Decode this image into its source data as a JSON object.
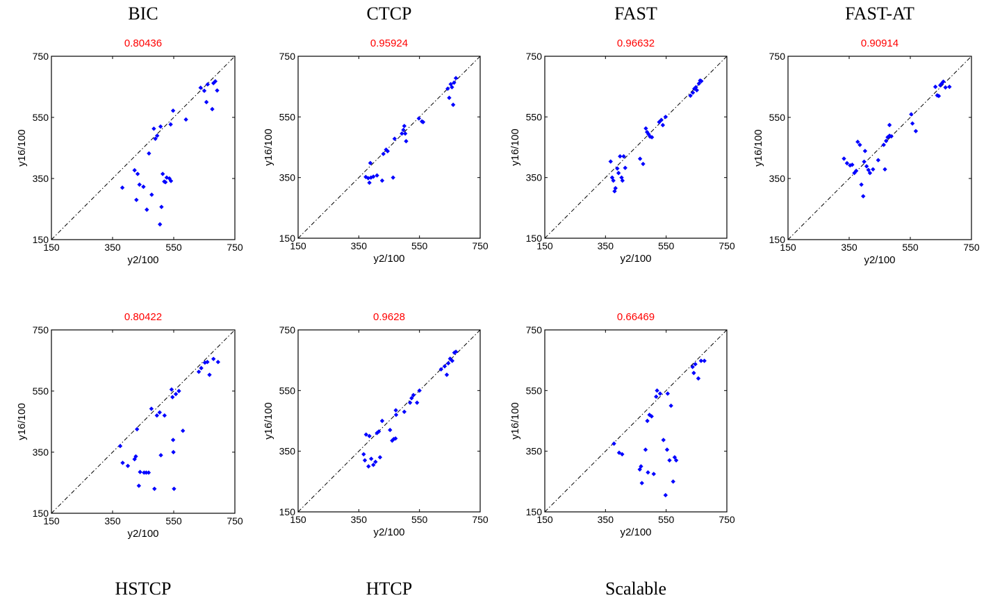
{
  "chart_data": [
    {
      "type": "scatter",
      "title": "BIC",
      "subtitle": "0.80436",
      "xlabel": "y2/100",
      "ylabel": "y16/100",
      "xlim": [
        150,
        750
      ],
      "ylim": [
        150,
        750
      ],
      "xticks": [
        "150",
        "350",
        "550",
        "750"
      ],
      "yticks": [
        "150",
        "350",
        "550",
        "750"
      ],
      "reference_line": "y = x",
      "color": "#0000ff",
      "points": [
        [
          382,
          320
        ],
        [
          422,
          377
        ],
        [
          432,
          365
        ],
        [
          438,
          330
        ],
        [
          428,
          280
        ],
        [
          451,
          323
        ],
        [
          462,
          248
        ],
        [
          469,
          432
        ],
        [
          478,
          297
        ],
        [
          485,
          513
        ],
        [
          490,
          480
        ],
        [
          496,
          490
        ],
        [
          505,
          200
        ],
        [
          510,
          257
        ],
        [
          507,
          520
        ],
        [
          514,
          365
        ],
        [
          519,
          340
        ],
        [
          523,
          338
        ],
        [
          527,
          353
        ],
        [
          536,
          350
        ],
        [
          540,
          527
        ],
        [
          541,
          342
        ],
        [
          548,
          572
        ],
        [
          590,
          543
        ],
        [
          638,
          647
        ],
        [
          650,
          637
        ],
        [
          657,
          600
        ],
        [
          661,
          658
        ],
        [
          676,
          577
        ],
        [
          680,
          662
        ],
        [
          686,
          668
        ],
        [
          692,
          638
        ]
      ]
    },
    {
      "type": "scatter",
      "title": "CTCP",
      "subtitle": "0.95924",
      "xlabel": "y2/100",
      "ylabel": "y16/100",
      "xlim": [
        150,
        750
      ],
      "ylim": [
        150,
        750
      ],
      "xticks": [
        "150",
        "350",
        "550",
        "750"
      ],
      "yticks": [
        "150",
        "350",
        "550",
        "750"
      ],
      "reference_line": "y = x",
      "color": "#0000ff",
      "points": [
        [
          373,
          352
        ],
        [
          381,
          348
        ],
        [
          385,
          333
        ],
        [
          388,
          398
        ],
        [
          390,
          350
        ],
        [
          398,
          353
        ],
        [
          410,
          357
        ],
        [
          427,
          340
        ],
        [
          431,
          428
        ],
        [
          440,
          442
        ],
        [
          445,
          437
        ],
        [
          463,
          350
        ],
        [
          468,
          478
        ],
        [
          492,
          495
        ],
        [
          497,
          507
        ],
        [
          500,
          520
        ],
        [
          503,
          495
        ],
        [
          506,
          470
        ],
        [
          548,
          545
        ],
        [
          558,
          535
        ],
        [
          562,
          533
        ],
        [
          643,
          643
        ],
        [
          648,
          613
        ],
        [
          653,
          658
        ],
        [
          657,
          648
        ],
        [
          661,
          590
        ],
        [
          664,
          663
        ],
        [
          670,
          678
        ]
      ]
    },
    {
      "type": "scatter",
      "title": "FAST",
      "subtitle": "0.96632",
      "xlabel": "y2/100",
      "ylabel": "y16/100",
      "xlim": [
        150,
        750
      ],
      "ylim": [
        150,
        750
      ],
      "xticks": [
        "150",
        "350",
        "550",
        "750"
      ],
      "yticks": [
        "150",
        "350",
        "550",
        "750"
      ],
      "reference_line": "y = x",
      "color": "#0000ff",
      "points": [
        [
          367,
          403
        ],
        [
          372,
          350
        ],
        [
          376,
          340
        ],
        [
          380,
          305
        ],
        [
          383,
          315
        ],
        [
          389,
          380
        ],
        [
          393,
          365
        ],
        [
          398,
          420
        ],
        [
          403,
          350
        ],
        [
          406,
          340
        ],
        [
          410,
          420
        ],
        [
          415,
          382
        ],
        [
          464,
          412
        ],
        [
          474,
          395
        ],
        [
          483,
          512
        ],
        [
          487,
          500
        ],
        [
          492,
          493
        ],
        [
          497,
          485
        ],
        [
          503,
          483
        ],
        [
          527,
          533
        ],
        [
          534,
          540
        ],
        [
          539,
          523
        ],
        [
          548,
          550
        ],
        [
          630,
          620
        ],
        [
          638,
          630
        ],
        [
          643,
          643
        ],
        [
          648,
          648
        ],
        [
          651,
          638
        ],
        [
          658,
          660
        ],
        [
          662,
          670
        ],
        [
          666,
          668
        ]
      ]
    },
    {
      "type": "scatter",
      "title": "FAST-AT",
      "subtitle": "0.90914",
      "xlabel": "y2/100",
      "ylabel": "y16/100",
      "xlim": [
        150,
        750
      ],
      "ylim": [
        150,
        750
      ],
      "xticks": [
        "150",
        "350",
        "550",
        "750"
      ],
      "yticks": [
        "150",
        "350",
        "550",
        "750"
      ],
      "reference_line": "y = x",
      "color": "#0000ff",
      "points": [
        [
          333,
          415
        ],
        [
          343,
          400
        ],
        [
          353,
          393
        ],
        [
          360,
          395
        ],
        [
          367,
          368
        ],
        [
          373,
          375
        ],
        [
          378,
          470
        ],
        [
          385,
          460
        ],
        [
          390,
          330
        ],
        [
          396,
          292
        ],
        [
          399,
          405
        ],
        [
          402,
          440
        ],
        [
          407,
          390
        ],
        [
          413,
          378
        ],
        [
          418,
          368
        ],
        [
          428,
          380
        ],
        [
          445,
          410
        ],
        [
          463,
          460
        ],
        [
          467,
          380
        ],
        [
          471,
          473
        ],
        [
          476,
          485
        ],
        [
          482,
          490
        ],
        [
          488,
          488
        ],
        [
          482,
          525
        ],
        [
          553,
          560
        ],
        [
          557,
          530
        ],
        [
          568,
          505
        ],
        [
          632,
          650
        ],
        [
          638,
          622
        ],
        [
          643,
          620
        ],
        [
          648,
          655
        ],
        [
          652,
          660
        ],
        [
          658,
          667
        ],
        [
          665,
          648
        ],
        [
          678,
          650
        ]
      ]
    },
    {
      "type": "scatter",
      "title": "HSTCP",
      "subtitle": "0.80422",
      "xlabel": "y2/100",
      "ylabel": "y16/100",
      "xlim": [
        150,
        750
      ],
      "ylim": [
        150,
        750
      ],
      "xticks": [
        "150",
        "350",
        "550",
        "750"
      ],
      "yticks": [
        "150",
        "350",
        "550",
        "750"
      ],
      "reference_line": "y = x",
      "color": "#0000ff",
      "points": [
        [
          375,
          370
        ],
        [
          383,
          315
        ],
        [
          400,
          305
        ],
        [
          422,
          327
        ],
        [
          426,
          336
        ],
        [
          430,
          425
        ],
        [
          436,
          240
        ],
        [
          440,
          285
        ],
        [
          453,
          283
        ],
        [
          460,
          283
        ],
        [
          468,
          283
        ],
        [
          477,
          492
        ],
        [
          487,
          230
        ],
        [
          495,
          470
        ],
        [
          504,
          480
        ],
        [
          508,
          340
        ],
        [
          520,
          470
        ],
        [
          543,
          555
        ],
        [
          546,
          530
        ],
        [
          548,
          390
        ],
        [
          549,
          350
        ],
        [
          551,
          230
        ],
        [
          557,
          540
        ],
        [
          567,
          550
        ],
        [
          580,
          420
        ],
        [
          632,
          613
        ],
        [
          640,
          625
        ],
        [
          652,
          643
        ],
        [
          660,
          645
        ],
        [
          667,
          603
        ],
        [
          680,
          655
        ],
        [
          695,
          645
        ]
      ]
    },
    {
      "type": "scatter",
      "title": "HTCP",
      "subtitle": "0.9628",
      "xlabel": "y2/100",
      "ylabel": "y16/100",
      "xlim": [
        150,
        750
      ],
      "ylim": [
        150,
        750
      ],
      "xticks": [
        "150",
        "350",
        "550",
        "750"
      ],
      "yticks": [
        "150",
        "350",
        "550",
        "750"
      ],
      "reference_line": "y = x",
      "color": "#0000ff",
      "points": [
        [
          366,
          340
        ],
        [
          370,
          320
        ],
        [
          374,
          405
        ],
        [
          382,
          300
        ],
        [
          385,
          400
        ],
        [
          391,
          325
        ],
        [
          398,
          305
        ],
        [
          405,
          315
        ],
        [
          410,
          410
        ],
        [
          416,
          415
        ],
        [
          420,
          330
        ],
        [
          427,
          450
        ],
        [
          453,
          420
        ],
        [
          460,
          385
        ],
        [
          465,
          390
        ],
        [
          471,
          392
        ],
        [
          472,
          485
        ],
        [
          473,
          470
        ],
        [
          500,
          480
        ],
        [
          519,
          510
        ],
        [
          524,
          525
        ],
        [
          530,
          535
        ],
        [
          542,
          510
        ],
        [
          550,
          550
        ],
        [
          621,
          620
        ],
        [
          633,
          630
        ],
        [
          640,
          602
        ],
        [
          645,
          640
        ],
        [
          651,
          655
        ],
        [
          658,
          648
        ],
        [
          665,
          675
        ],
        [
          670,
          678
        ]
      ]
    },
    {
      "type": "scatter",
      "title": "Scalable",
      "subtitle": "0.66469",
      "xlabel": "y2/100",
      "ylabel": "y16/100",
      "xlim": [
        150,
        750
      ],
      "ylim": [
        150,
        750
      ],
      "xticks": [
        "150",
        "350",
        "550",
        "750"
      ],
      "yticks": [
        "150",
        "350",
        "550",
        "750"
      ],
      "reference_line": "y = x",
      "color": "#0000ff",
      "points": [
        [
          378,
          375
        ],
        [
          395,
          345
        ],
        [
          405,
          340
        ],
        [
          463,
          290
        ],
        [
          467,
          300
        ],
        [
          470,
          245
        ],
        [
          482,
          355
        ],
        [
          488,
          450
        ],
        [
          490,
          280
        ],
        [
          495,
          470
        ],
        [
          502,
          465
        ],
        [
          509,
          275
        ],
        [
          517,
          530
        ],
        [
          520,
          550
        ],
        [
          530,
          540
        ],
        [
          541,
          387
        ],
        [
          548,
          205
        ],
        [
          553,
          355
        ],
        [
          555,
          540
        ],
        [
          561,
          320
        ],
        [
          566,
          500
        ],
        [
          573,
          250
        ],
        [
          578,
          330
        ],
        [
          583,
          320
        ],
        [
          637,
          628
        ],
        [
          641,
          608
        ],
        [
          646,
          637
        ],
        [
          656,
          590
        ],
        [
          665,
          648
        ],
        [
          676,
          648
        ]
      ]
    }
  ]
}
